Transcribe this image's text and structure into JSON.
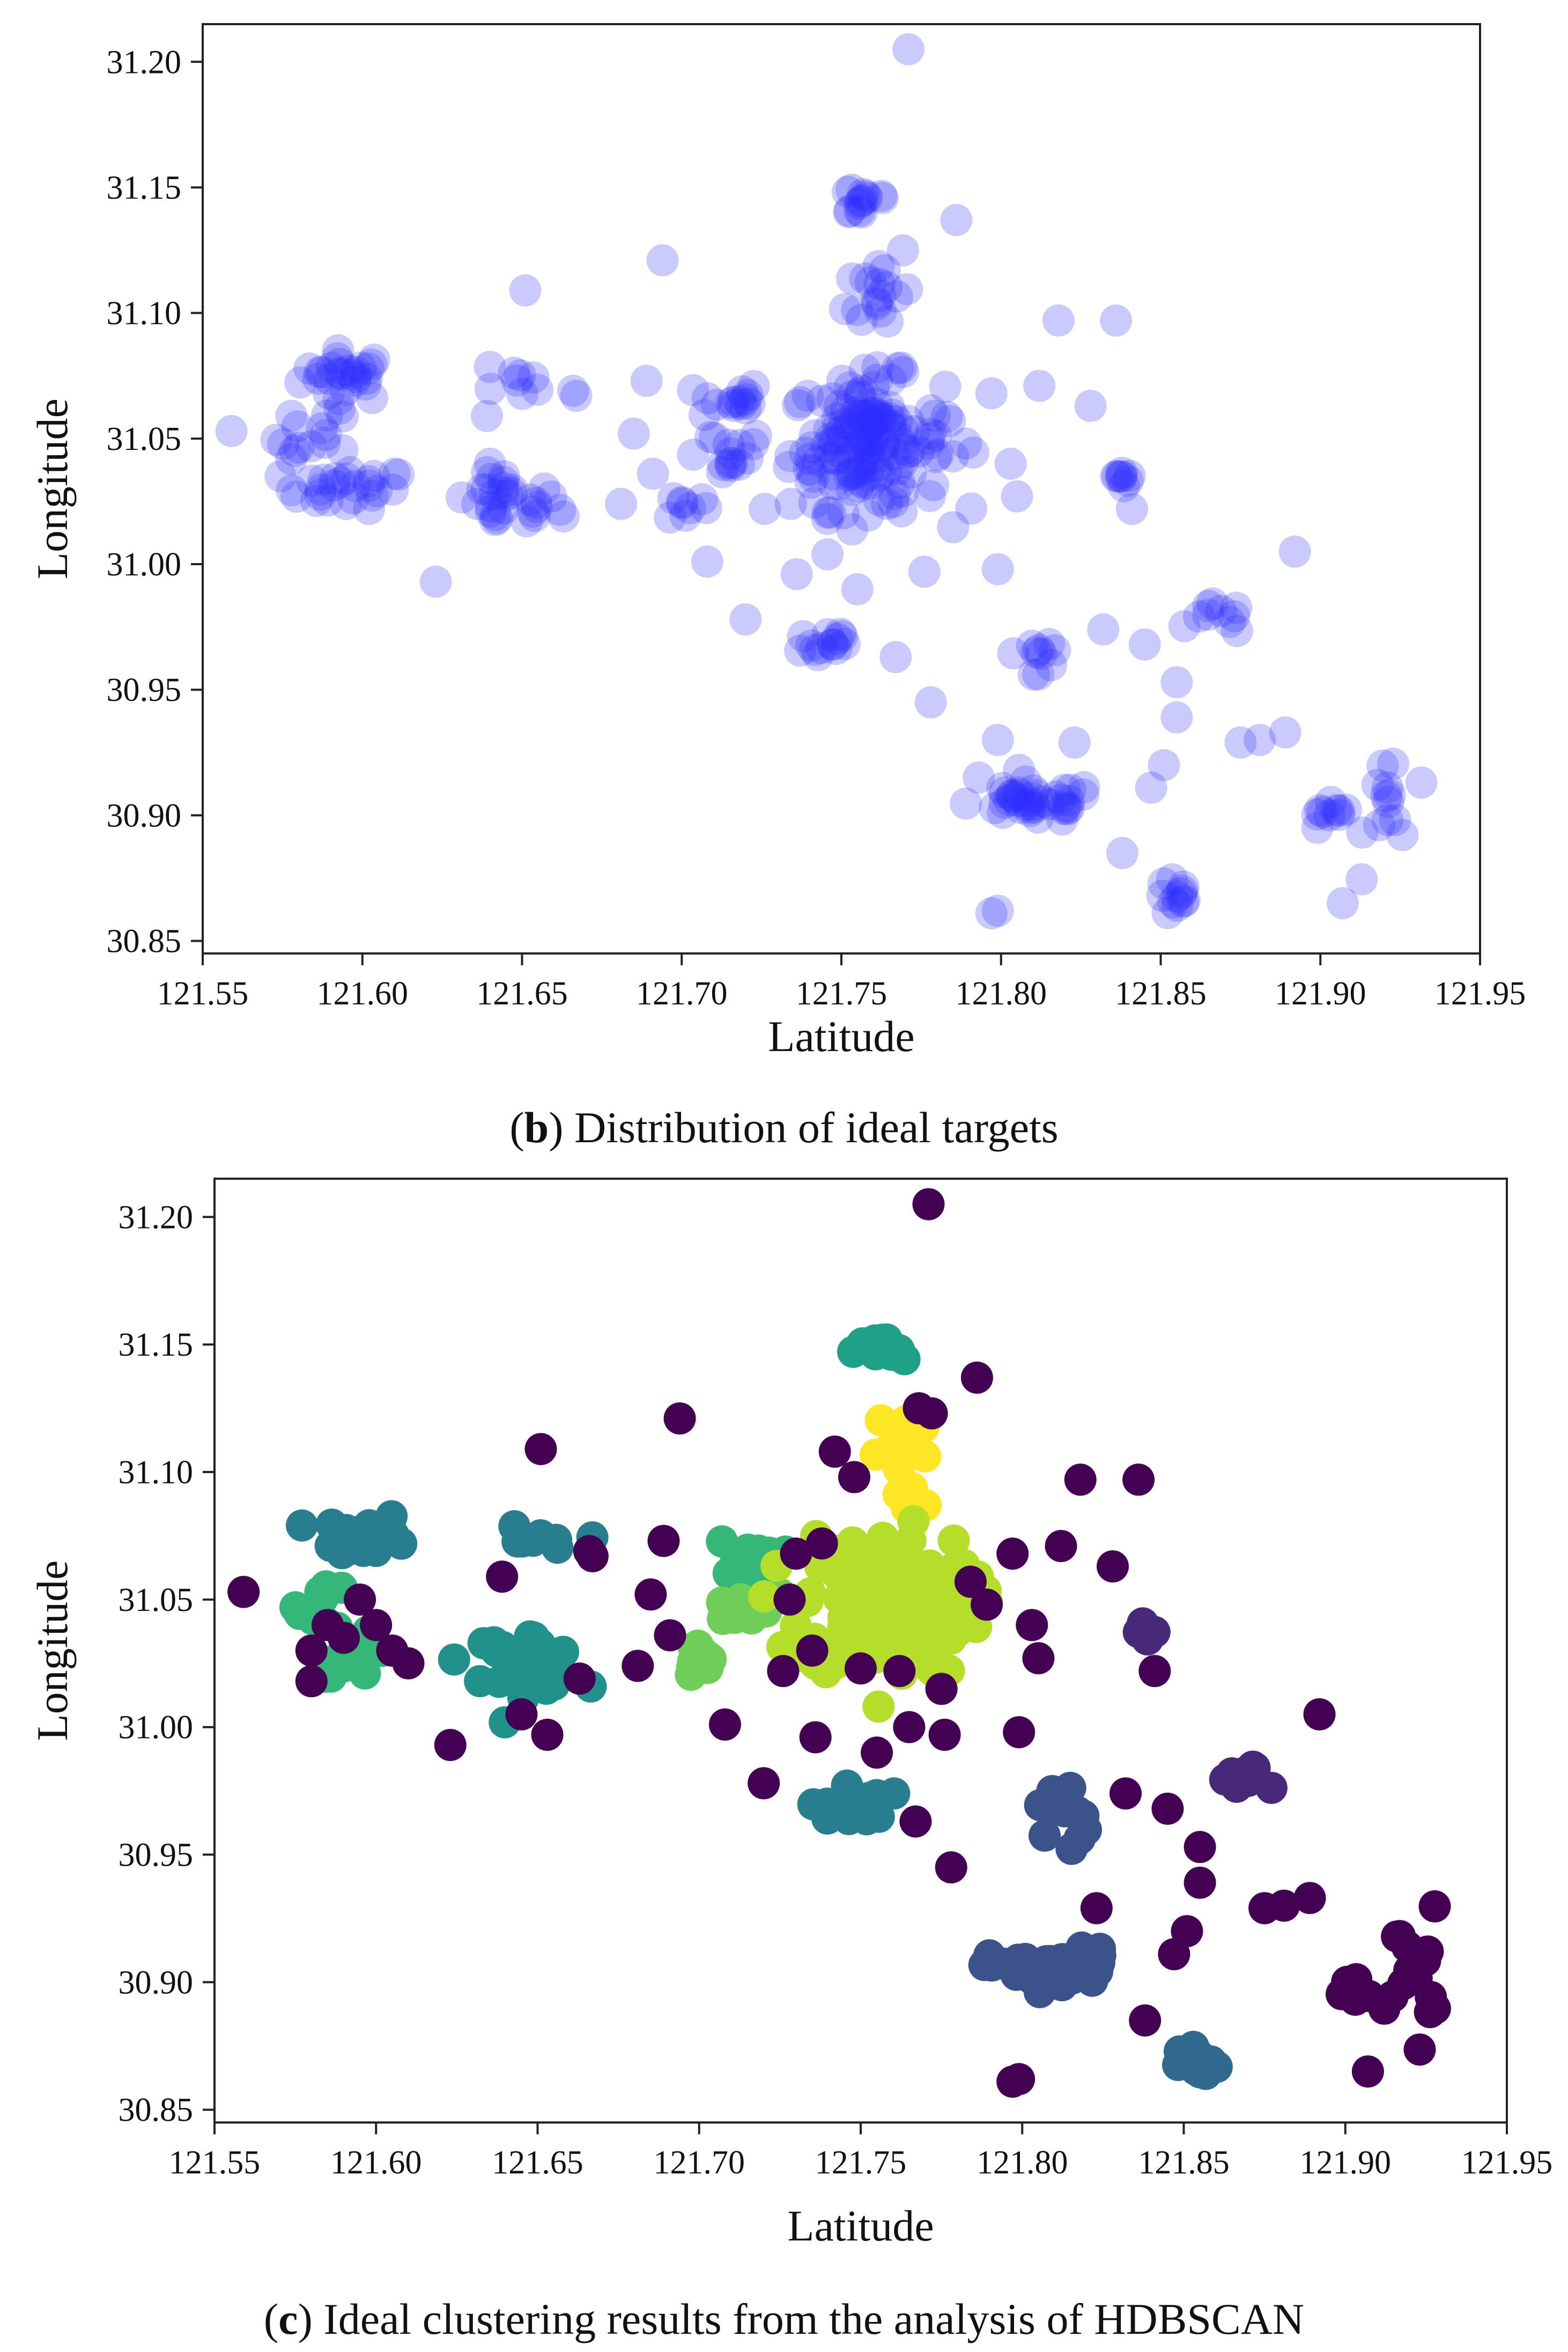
{
  "colors": {
    "blue": "#2a2aff",
    "viridis": {
      "c0": "#440154",
      "c1": "#3b528b",
      "c2": "#31688e",
      "c3": "#287d8e",
      "c4": "#21918c",
      "c5": "#1fa187",
      "c6": "#35b779",
      "c7": "#6ece58",
      "c8": "#b5de2b",
      "c9": "#fde725",
      "c10": "#482878"
    }
  },
  "chart_data": [
    {
      "type": "scatter",
      "panel": "b",
      "caption_letter": "b",
      "caption_text": " Distribution of ideal targets",
      "xlabel": "Latitude",
      "ylabel": "Longitude",
      "xlim": [
        121.55,
        121.95
      ],
      "ylim": [
        30.845,
        31.215
      ],
      "xticks": [
        "121.55",
        "121.60",
        "121.65",
        "121.70",
        "121.75",
        "121.80",
        "121.85",
        "121.90",
        "121.95"
      ],
      "yticks": [
        "30.85",
        "30.90",
        "30.95",
        "31.00",
        "31.05",
        "31.10",
        "31.15",
        "31.20"
      ],
      "point_color": "blue",
      "point_alpha": 0.25,
      "clusters": [
        {
          "cx": 121.595,
          "cy": 31.075,
          "sx": 0.007,
          "sy": 0.005,
          "n": 28
        },
        {
          "cx": 121.585,
          "cy": 31.05,
          "sx": 0.006,
          "sy": 0.006,
          "n": 14
        },
        {
          "cx": 121.595,
          "cy": 31.03,
          "sx": 0.01,
          "sy": 0.004,
          "n": 26
        },
        {
          "cx": 121.645,
          "cy": 31.025,
          "sx": 0.008,
          "sy": 0.006,
          "n": 30
        },
        {
          "cx": 121.647,
          "cy": 31.072,
          "sx": 0.006,
          "sy": 0.003,
          "n": 8
        },
        {
          "cx": 121.702,
          "cy": 31.023,
          "sx": 0.003,
          "sy": 0.003,
          "n": 8
        },
        {
          "cx": 121.715,
          "cy": 31.065,
          "sx": 0.005,
          "sy": 0.004,
          "n": 14
        },
        {
          "cx": 121.712,
          "cy": 31.045,
          "sx": 0.008,
          "sy": 0.005,
          "n": 14
        },
        {
          "cx": 121.757,
          "cy": 31.145,
          "sx": 0.005,
          "sy": 0.004,
          "n": 14
        },
        {
          "cx": 121.762,
          "cy": 31.11,
          "sx": 0.005,
          "sy": 0.01,
          "n": 18
        },
        {
          "cx": 121.758,
          "cy": 31.048,
          "sx": 0.012,
          "sy": 0.013,
          "n": 160
        },
        {
          "cx": 121.745,
          "cy": 30.968,
          "sx": 0.005,
          "sy": 0.004,
          "n": 14
        },
        {
          "cx": 121.812,
          "cy": 30.965,
          "sx": 0.004,
          "sy": 0.008,
          "n": 10
        },
        {
          "cx": 121.81,
          "cy": 30.905,
          "sx": 0.01,
          "sy": 0.004,
          "n": 40
        },
        {
          "cx": 121.855,
          "cy": 30.867,
          "sx": 0.003,
          "sy": 0.004,
          "n": 12
        },
        {
          "cx": 121.868,
          "cy": 30.978,
          "sx": 0.004,
          "sy": 0.003,
          "n": 10
        },
        {
          "cx": 121.838,
          "cy": 31.036,
          "sx": 0.002,
          "sy": 0.003,
          "n": 8
        },
        {
          "cx": 121.902,
          "cy": 30.898,
          "sx": 0.004,
          "sy": 0.003,
          "n": 10
        },
        {
          "cx": 121.922,
          "cy": 30.905,
          "sx": 0.004,
          "sy": 0.012,
          "n": 14
        }
      ],
      "outliers": [
        [
          121.559,
          31.053
        ],
        [
          121.623,
          30.993
        ],
        [
          121.651,
          31.109
        ],
        [
          121.694,
          31.121
        ],
        [
          121.771,
          31.205
        ],
        [
          121.786,
          31.137
        ],
        [
          121.797,
          30.861
        ],
        [
          121.799,
          30.862
        ],
        [
          121.818,
          31.097
        ],
        [
          121.836,
          31.097
        ],
        [
          121.838,
          30.885
        ],
        [
          121.851,
          30.92
        ],
        [
          121.855,
          30.953
        ],
        [
          121.847,
          30.911
        ],
        [
          121.875,
          30.929
        ],
        [
          121.889,
          30.933
        ],
        [
          121.892,
          31.005
        ],
        [
          121.907,
          30.865
        ],
        [
          121.778,
          30.945
        ],
        [
          121.799,
          30.998
        ],
        [
          121.805,
          31.027
        ],
        [
          121.832,
          30.974
        ],
        [
          121.845,
          30.968
        ],
        [
          121.828,
          31.063
        ],
        [
          121.841,
          31.022
        ],
        [
          121.797,
          31.068
        ],
        [
          121.812,
          31.071
        ],
        [
          121.789,
          31.048
        ],
        [
          121.784,
          31.057
        ],
        [
          121.803,
          31.04
        ],
        [
          121.72,
          30.978
        ],
        [
          121.736,
          30.996
        ],
        [
          121.755,
          30.99
        ],
        [
          121.767,
          30.963
        ],
        [
          121.776,
          30.997
        ],
        [
          121.726,
          31.022
        ],
        [
          121.708,
          31.001
        ],
        [
          121.681,
          31.024
        ],
        [
          121.663,
          31.019
        ],
        [
          121.667,
          31.067
        ],
        [
          121.685,
          31.052
        ],
        [
          121.691,
          31.036
        ],
        [
          121.666,
          31.069
        ],
        [
          121.793,
          30.915
        ],
        [
          121.823,
          30.929
        ],
        [
          121.855,
          30.939
        ],
        [
          121.799,
          30.93
        ],
        [
          121.881,
          30.93
        ],
        [
          121.639,
          31.059
        ],
        [
          121.689,
          31.073
        ]
      ]
    },
    {
      "type": "scatter",
      "panel": "c",
      "caption_letter": "c",
      "caption_text": " Ideal clustering results from the analysis of HDBSCAN",
      "xlabel": "Latitude",
      "ylabel": "Longitude",
      "xlim": [
        121.55,
        121.95
      ],
      "ylim": [
        30.845,
        31.215
      ],
      "xticks": [
        "121.55",
        "121.60",
        "121.65",
        "121.70",
        "121.75",
        "121.80",
        "121.85",
        "121.90",
        "121.95"
      ],
      "yticks": [
        "30.85",
        "30.90",
        "30.95",
        "31.00",
        "31.05",
        "31.10",
        "31.15",
        "31.20"
      ],
      "point_alpha": 1.0,
      "clusters": [
        {
          "cx": 121.597,
          "cy": 31.075,
          "sx": 0.007,
          "sy": 0.004,
          "n": 28,
          "color": "c3"
        },
        {
          "cx": 121.584,
          "cy": 31.048,
          "sx": 0.004,
          "sy": 0.005,
          "n": 10,
          "color": "c6"
        },
        {
          "cx": 121.594,
          "cy": 31.028,
          "sx": 0.006,
          "sy": 0.004,
          "n": 14,
          "color": "c6"
        },
        {
          "cx": 121.645,
          "cy": 31.026,
          "sx": 0.009,
          "sy": 0.006,
          "n": 32,
          "color": "c4"
        },
        {
          "cx": 121.648,
          "cy": 31.072,
          "sx": 0.006,
          "sy": 0.003,
          "n": 8,
          "color": "c3"
        },
        {
          "cx": 121.7,
          "cy": 31.025,
          "sx": 0.003,
          "sy": 0.004,
          "n": 10,
          "color": "c7"
        },
        {
          "cx": 121.715,
          "cy": 31.067,
          "sx": 0.005,
          "sy": 0.004,
          "n": 14,
          "color": "c6"
        },
        {
          "cx": 121.713,
          "cy": 31.046,
          "sx": 0.006,
          "sy": 0.003,
          "n": 14,
          "color": "c7"
        },
        {
          "cx": 121.756,
          "cy": 31.147,
          "sx": 0.004,
          "sy": 0.003,
          "n": 16,
          "color": "c5"
        },
        {
          "cx": 121.763,
          "cy": 31.11,
          "sx": 0.004,
          "sy": 0.009,
          "n": 20,
          "color": "c9"
        },
        {
          "cx": 121.765,
          "cy": 31.087,
          "sx": 0.003,
          "sy": 0.005,
          "n": 6,
          "color": "c9"
        },
        {
          "cx": 121.758,
          "cy": 31.048,
          "sx": 0.013,
          "sy": 0.014,
          "n": 170,
          "color": "c8"
        },
        {
          "cx": 121.747,
          "cy": 30.97,
          "sx": 0.006,
          "sy": 0.004,
          "n": 16,
          "color": "c3"
        },
        {
          "cx": 121.812,
          "cy": 30.965,
          "sx": 0.004,
          "sy": 0.008,
          "n": 12,
          "color": "c1"
        },
        {
          "cx": 121.81,
          "cy": 30.905,
          "sx": 0.01,
          "sy": 0.004,
          "n": 44,
          "color": "c1"
        },
        {
          "cx": 121.855,
          "cy": 30.867,
          "sx": 0.003,
          "sy": 0.004,
          "n": 14,
          "color": "c2"
        },
        {
          "cx": 121.868,
          "cy": 30.979,
          "sx": 0.004,
          "sy": 0.003,
          "n": 10,
          "color": "c10"
        },
        {
          "cx": 121.839,
          "cy": 31.036,
          "sx": 0.002,
          "sy": 0.003,
          "n": 8,
          "color": "c10"
        },
        {
          "cx": 121.903,
          "cy": 30.898,
          "sx": 0.004,
          "sy": 0.003,
          "n": 12,
          "color": "c0"
        },
        {
          "cx": 121.921,
          "cy": 30.905,
          "sx": 0.004,
          "sy": 0.012,
          "n": 16,
          "color": "c0"
        }
      ],
      "outlier_color": "c0",
      "outliers": [
        [
          121.559,
          31.053
        ],
        [
          121.623,
          30.993
        ],
        [
          121.651,
          31.109
        ],
        [
          121.694,
          31.121
        ],
        [
          121.771,
          31.205
        ],
        [
          121.786,
          31.137
        ],
        [
          121.797,
          30.861
        ],
        [
          121.799,
          30.862
        ],
        [
          121.818,
          31.097
        ],
        [
          121.836,
          31.097
        ],
        [
          121.838,
          30.885
        ],
        [
          121.851,
          30.92
        ],
        [
          121.855,
          30.953
        ],
        [
          121.847,
          30.911
        ],
        [
          121.875,
          30.929
        ],
        [
          121.889,
          30.933
        ],
        [
          121.892,
          31.005
        ],
        [
          121.907,
          30.865
        ],
        [
          121.778,
          30.945
        ],
        [
          121.799,
          30.998
        ],
        [
          121.805,
          31.027
        ],
        [
          121.832,
          30.974
        ],
        [
          121.845,
          30.968
        ],
        [
          121.828,
          31.063
        ],
        [
          121.841,
          31.022
        ],
        [
          121.797,
          31.068
        ],
        [
          121.812,
          31.071
        ],
        [
          121.789,
          31.048
        ],
        [
          121.784,
          31.057
        ],
        [
          121.803,
          31.04
        ],
        [
          121.72,
          30.978
        ],
        [
          121.736,
          30.996
        ],
        [
          121.755,
          30.99
        ],
        [
          121.767,
          30.963
        ],
        [
          121.776,
          30.997
        ],
        [
          121.726,
          31.022
        ],
        [
          121.708,
          31.001
        ],
        [
          121.681,
          31.024
        ],
        [
          121.663,
          31.019
        ],
        [
          121.667,
          31.067
        ],
        [
          121.685,
          31.052
        ],
        [
          121.691,
          31.036
        ],
        [
          121.666,
          31.069
        ],
        [
          121.823,
          30.929
        ],
        [
          121.855,
          30.939
        ],
        [
          121.881,
          30.93
        ],
        [
          121.639,
          31.059
        ],
        [
          121.689,
          31.073
        ],
        [
          121.58,
          31.03
        ],
        [
          121.585,
          31.04
        ],
        [
          121.59,
          31.035
        ],
        [
          121.6,
          31.04
        ],
        [
          121.605,
          31.03
        ],
        [
          121.61,
          31.025
        ],
        [
          121.58,
          31.018
        ],
        [
          121.595,
          31.05
        ],
        [
          121.653,
          30.997
        ],
        [
          121.645,
          31.005
        ],
        [
          121.738,
          31.072
        ],
        [
          121.742,
          31.108
        ],
        [
          121.748,
          31.098
        ],
        [
          121.768,
          31.125
        ],
        [
          121.772,
          31.123
        ],
        [
          121.775,
          31.015
        ],
        [
          121.765,
          31.0
        ],
        [
          121.762,
          31.022
        ],
        [
          121.75,
          31.023
        ],
        [
          121.735,
          31.03
        ],
        [
          121.728,
          31.05
        ],
        [
          121.73,
          31.068
        ]
      ]
    }
  ]
}
